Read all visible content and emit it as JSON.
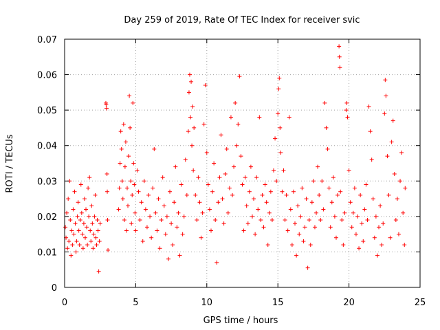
{
  "chart_data": {
    "type": "scatter",
    "title": "Day 259 of 2019, Rate Of TEC Index for receiver svic",
    "xlabel": "GPS time / hours",
    "ylabel": "ROTI / TECUs",
    "xlim": [
      0,
      25
    ],
    "ylim": [
      0,
      0.07
    ],
    "x_ticks": [
      0,
      5,
      10,
      15,
      20,
      25
    ],
    "x_tick_labels": [
      "0",
      "5",
      "10",
      "15",
      "20",
      "25"
    ],
    "y_ticks": [
      0,
      0.01,
      0.02,
      0.03,
      0.04,
      0.05,
      0.06,
      0.07
    ],
    "y_tick_labels": [
      "0",
      "0.01",
      "0.02",
      "0.03",
      "0.04",
      "0.05",
      "0.06",
      "0.07"
    ],
    "grid": true,
    "marker": "plus",
    "color": "#ff0000",
    "series": [
      {
        "name": "ROTI",
        "points": [
          [
            0.05,
            0.017
          ],
          [
            0.1,
            0.014
          ],
          [
            0.15,
            0.021
          ],
          [
            0.2,
            0.011
          ],
          [
            0.25,
            0.025
          ],
          [
            0.3,
            0.013
          ],
          [
            0.35,
            0.03
          ],
          [
            0.4,
            0.019
          ],
          [
            0.45,
            0.009
          ],
          [
            0.5,
            0.016
          ],
          [
            0.55,
            0.012
          ],
          [
            0.6,
            0.022
          ],
          [
            0.65,
            0.015
          ],
          [
            0.7,
            0.027
          ],
          [
            0.75,
            0.018
          ],
          [
            0.8,
            0.01
          ],
          [
            0.85,
            0.013
          ],
          [
            0.9,
            0.02
          ],
          [
            0.95,
            0.024
          ],
          [
            1.0,
            0.016
          ],
          [
            1.05,
            0.012
          ],
          [
            1.1,
            0.019
          ],
          [
            1.15,
            0.029
          ],
          [
            1.2,
            0.021
          ],
          [
            1.25,
            0.015
          ],
          [
            1.3,
            0.011
          ],
          [
            1.35,
            0.018
          ],
          [
            1.4,
            0.025
          ],
          [
            1.45,
            0.014
          ],
          [
            1.5,
            0.022
          ],
          [
            1.55,
            0.017
          ],
          [
            1.6,
            0.012
          ],
          [
            1.65,
            0.028
          ],
          [
            1.7,
            0.02
          ],
          [
            1.75,
            0.031
          ],
          [
            1.8,
            0.016
          ],
          [
            1.85,
            0.013
          ],
          [
            1.9,
            0.023
          ],
          [
            1.95,
            0.018
          ],
          [
            2.0,
            0.011
          ],
          [
            2.05,
            0.015
          ],
          [
            2.1,
            0.02
          ],
          [
            2.15,
            0.026
          ],
          [
            2.2,
            0.014
          ],
          [
            2.25,
            0.012
          ],
          [
            2.3,
            0.019
          ],
          [
            2.35,
            0.016
          ],
          [
            2.4,
            0.0045
          ],
          [
            2.45,
            0.013
          ],
          [
            2.5,
            0.018
          ],
          [
            2.9,
            0.052
          ],
          [
            2.92,
            0.0515
          ],
          [
            2.95,
            0.0505
          ],
          [
            2.98,
            0.032
          ],
          [
            3.0,
            0.027
          ],
          [
            3.02,
            0.019
          ],
          [
            3.05,
            0.0105
          ],
          [
            3.8,
            0.022
          ],
          [
            3.85,
            0.028
          ],
          [
            3.9,
            0.035
          ],
          [
            3.95,
            0.044
          ],
          [
            4.0,
            0.039
          ],
          [
            4.05,
            0.03
          ],
          [
            4.1,
            0.025
          ],
          [
            4.15,
            0.046
          ],
          [
            4.2,
            0.019
          ],
          [
            4.25,
            0.034
          ],
          [
            4.3,
            0.041
          ],
          [
            4.35,
            0.016
          ],
          [
            4.4,
            0.028
          ],
          [
            4.45,
            0.023
          ],
          [
            4.5,
            0.037
          ],
          [
            4.55,
            0.054
          ],
          [
            4.6,
            0.045
          ],
          [
            4.65,
            0.03
          ],
          [
            4.7,
            0.018
          ],
          [
            4.75,
            0.026
          ],
          [
            4.8,
            0.052
          ],
          [
            4.85,
            0.035
          ],
          [
            4.9,
            0.029
          ],
          [
            4.95,
            0.021
          ],
          [
            5.0,
            0.016
          ],
          [
            5.1,
            0.033
          ],
          [
            5.2,
            0.027
          ],
          [
            5.3,
            0.019
          ],
          [
            5.4,
            0.024
          ],
          [
            5.5,
            0.013
          ],
          [
            5.6,
            0.03
          ],
          [
            5.7,
            0.022
          ],
          [
            5.8,
            0.017
          ],
          [
            5.9,
            0.026
          ],
          [
            6.0,
            0.02
          ],
          [
            6.1,
            0.014
          ],
          [
            6.2,
            0.028
          ],
          [
            6.3,
            0.039
          ],
          [
            6.4,
            0.021
          ],
          [
            6.5,
            0.016
          ],
          [
            6.6,
            0.025
          ],
          [
            6.7,
            0.011
          ],
          [
            6.8,
            0.019
          ],
          [
            6.9,
            0.031
          ],
          [
            7.0,
            0.023
          ],
          [
            7.1,
            0.015
          ],
          [
            7.2,
            0.02
          ],
          [
            7.3,
            0.008
          ],
          [
            7.4,
            0.027
          ],
          [
            7.5,
            0.018
          ],
          [
            7.6,
            0.012
          ],
          [
            7.7,
            0.024
          ],
          [
            7.8,
            0.034
          ],
          [
            7.9,
            0.017
          ],
          [
            8.0,
            0.021
          ],
          [
            8.1,
            0.009
          ],
          [
            8.2,
            0.029
          ],
          [
            8.3,
            0.015
          ],
          [
            8.4,
            0.02
          ],
          [
            8.5,
            0.036
          ],
          [
            8.6,
            0.026
          ],
          [
            8.7,
            0.044
          ],
          [
            8.75,
            0.055
          ],
          [
            8.8,
            0.06
          ],
          [
            8.85,
            0.048
          ],
          [
            8.9,
            0.058
          ],
          [
            8.95,
            0.04
          ],
          [
            9.0,
            0.051
          ],
          [
            9.05,
            0.033
          ],
          [
            9.1,
            0.045
          ],
          [
            9.2,
            0.026
          ],
          [
            9.3,
            0.019
          ],
          [
            9.4,
            0.031
          ],
          [
            9.5,
            0.024
          ],
          [
            9.6,
            0.014
          ],
          [
            9.7,
            0.021
          ],
          [
            9.8,
            0.046
          ],
          [
            9.9,
            0.057
          ],
          [
            10.0,
            0.038
          ],
          [
            10.1,
            0.029
          ],
          [
            10.2,
            0.022
          ],
          [
            10.3,
            0.016
          ],
          [
            10.4,
            0.027
          ],
          [
            10.5,
            0.035
          ],
          [
            10.6,
            0.019
          ],
          [
            10.7,
            0.007
          ],
          [
            10.8,
            0.024
          ],
          [
            10.9,
            0.031
          ],
          [
            11.0,
            0.043
          ],
          [
            11.1,
            0.025
          ],
          [
            11.2,
            0.018
          ],
          [
            11.3,
            0.032
          ],
          [
            11.4,
            0.039
          ],
          [
            11.5,
            0.021
          ],
          [
            11.6,
            0.028
          ],
          [
            11.7,
            0.048
          ],
          [
            11.8,
            0.026
          ],
          [
            11.9,
            0.034
          ],
          [
            12.0,
            0.052
          ],
          [
            12.1,
            0.04
          ],
          [
            12.2,
            0.046
          ],
          [
            12.3,
            0.0595
          ],
          [
            12.4,
            0.037
          ],
          [
            12.5,
            0.029
          ],
          [
            12.6,
            0.016
          ],
          [
            12.7,
            0.031
          ],
          [
            12.8,
            0.023
          ],
          [
            12.9,
            0.018
          ],
          [
            13.0,
            0.027
          ],
          [
            13.1,
            0.034
          ],
          [
            13.2,
            0.02
          ],
          [
            13.3,
            0.025
          ],
          [
            13.4,
            0.015
          ],
          [
            13.5,
            0.031
          ],
          [
            13.6,
            0.022
          ],
          [
            13.7,
            0.048
          ],
          [
            13.8,
            0.019
          ],
          [
            13.9,
            0.026
          ],
          [
            14.0,
            0.017
          ],
          [
            14.1,
            0.029
          ],
          [
            14.2,
            0.024
          ],
          [
            14.3,
            0.012
          ],
          [
            14.4,
            0.021
          ],
          [
            14.5,
            0.027
          ],
          [
            14.6,
            0.019
          ],
          [
            14.7,
            0.033
          ],
          [
            14.8,
            0.042
          ],
          [
            14.9,
            0.03
          ],
          [
            15.0,
            0.049
          ],
          [
            15.05,
            0.056
          ],
          [
            15.1,
            0.059
          ],
          [
            15.15,
            0.045
          ],
          [
            15.2,
            0.038
          ],
          [
            15.3,
            0.027
          ],
          [
            15.4,
            0.033
          ],
          [
            15.5,
            0.019
          ],
          [
            15.6,
            0.026
          ],
          [
            15.7,
            0.016
          ],
          [
            15.8,
            0.048
          ],
          [
            15.9,
            0.022
          ],
          [
            16.0,
            0.012
          ],
          [
            16.1,
            0.027
          ],
          [
            16.2,
            0.018
          ],
          [
            16.3,
            0.009
          ],
          [
            16.4,
            0.023
          ],
          [
            16.5,
            0.015
          ],
          [
            16.6,
            0.02
          ],
          [
            16.7,
            0.028
          ],
          [
            16.8,
            0.013
          ],
          [
            16.9,
            0.017
          ],
          [
            17.0,
            0.025
          ],
          [
            17.1,
            0.0055
          ],
          [
            17.2,
            0.019
          ],
          [
            17.3,
            0.012
          ],
          [
            17.4,
            0.024
          ],
          [
            17.5,
            0.03
          ],
          [
            17.6,
            0.017
          ],
          [
            17.7,
            0.021
          ],
          [
            17.8,
            0.034
          ],
          [
            17.9,
            0.026
          ],
          [
            18.0,
            0.019
          ],
          [
            18.1,
            0.03
          ],
          [
            18.2,
            0.022
          ],
          [
            18.3,
            0.052
          ],
          [
            18.4,
            0.045
          ],
          [
            18.5,
            0.039
          ],
          [
            18.6,
            0.028
          ],
          [
            18.7,
            0.017
          ],
          [
            18.8,
            0.024
          ],
          [
            18.9,
            0.031
          ],
          [
            19.0,
            0.02
          ],
          [
            19.1,
            0.014
          ],
          [
            19.2,
            0.026
          ],
          [
            19.3,
            0.068
          ],
          [
            19.33,
            0.065
          ],
          [
            19.36,
            0.062
          ],
          [
            19.4,
            0.027
          ],
          [
            19.5,
            0.019
          ],
          [
            19.6,
            0.012
          ],
          [
            19.7,
            0.021
          ],
          [
            19.8,
            0.05
          ],
          [
            19.85,
            0.052
          ],
          [
            19.9,
            0.048
          ],
          [
            20.0,
            0.033
          ],
          [
            20.1,
            0.024
          ],
          [
            20.2,
            0.017
          ],
          [
            20.3,
            0.021
          ],
          [
            20.4,
            0.028
          ],
          [
            20.5,
            0.015
          ],
          [
            20.6,
            0.02
          ],
          [
            20.7,
            0.011
          ],
          [
            20.8,
            0.026
          ],
          [
            20.9,
            0.018
          ],
          [
            21.0,
            0.013
          ],
          [
            21.1,
            0.022
          ],
          [
            21.2,
            0.029
          ],
          [
            21.3,
            0.019
          ],
          [
            21.4,
            0.051
          ],
          [
            21.5,
            0.044
          ],
          [
            21.6,
            0.036
          ],
          [
            21.7,
            0.025
          ],
          [
            21.8,
            0.014
          ],
          [
            21.9,
            0.02
          ],
          [
            22.0,
            0.009
          ],
          [
            22.1,
            0.017
          ],
          [
            22.2,
            0.023
          ],
          [
            22.3,
            0.012
          ],
          [
            22.4,
            0.018
          ],
          [
            22.5,
            0.049
          ],
          [
            22.55,
            0.0585
          ],
          [
            22.6,
            0.054
          ],
          [
            22.7,
            0.037
          ],
          [
            22.8,
            0.026
          ],
          [
            22.9,
            0.014
          ],
          [
            23.0,
            0.041
          ],
          [
            23.1,
            0.047
          ],
          [
            23.2,
            0.032
          ],
          [
            23.3,
            0.019
          ],
          [
            23.4,
            0.025
          ],
          [
            23.5,
            0.015
          ],
          [
            23.6,
            0.03
          ],
          [
            23.7,
            0.038
          ],
          [
            23.8,
            0.021
          ],
          [
            23.9,
            0.012
          ],
          [
            23.95,
            0.028
          ]
        ]
      }
    ]
  }
}
